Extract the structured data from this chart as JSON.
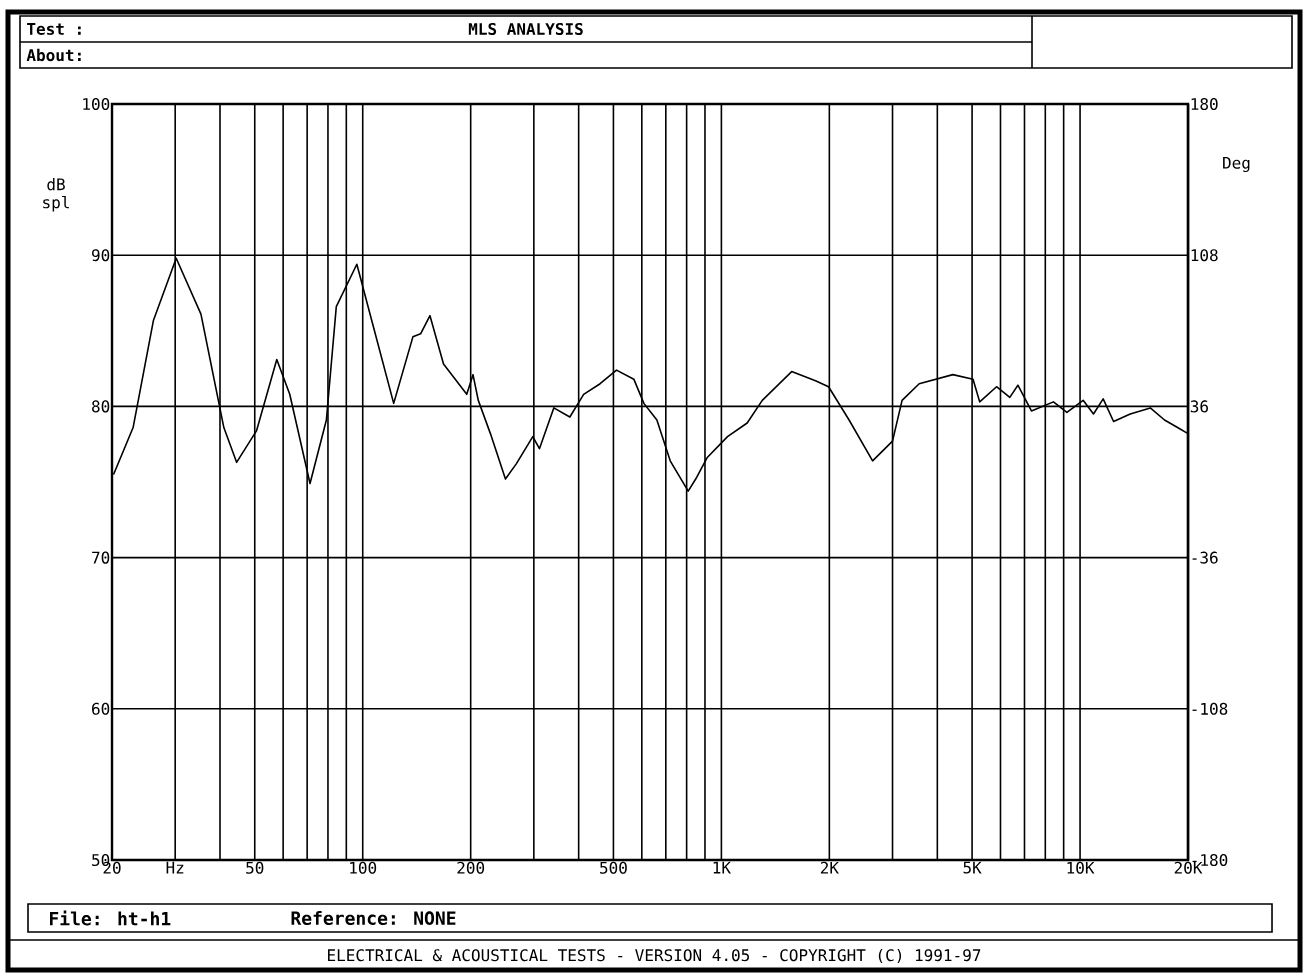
{
  "chart_data": {
    "type": "line",
    "xlabel": null,
    "ylabel": "dB spl",
    "y2label": "Deg",
    "annotations": [
      "Test :",
      "MLS ANALYSIS",
      "About:",
      "File: ht-h1",
      "Reference: NONE",
      "ELECTRICAL & ACOUSTICAL TESTS - VERSION 4.05 - COPYRIGHT (C) 1991-97"
    ],
    "log": "x",
    "grid": true,
    "marker": "none",
    "line_style": "solid",
    "xlim": [
      20,
      20000
    ],
    "ylim": [
      50,
      100
    ],
    "y2lim": [
      -180,
      180
    ],
    "xticks": [
      20,
      {
        "value": 30,
        "label": "Hz"
      },
      {
        "value": 40,
        "label": null
      },
      50,
      {
        "value": 60,
        "label": null
      },
      {
        "value": 70,
        "label": null
      },
      {
        "value": 80,
        "label": null
      },
      {
        "value": 90,
        "label": null
      },
      100,
      200,
      {
        "value": 300,
        "label": null
      },
      {
        "value": 400,
        "label": null
      },
      500,
      {
        "value": 600,
        "label": null
      },
      {
        "value": 700,
        "label": null
      },
      {
        "value": 800,
        "label": null
      },
      {
        "value": 900,
        "label": null
      },
      {
        "value": 1000,
        "label": "1K"
      },
      {
        "value": 2000,
        "label": "2K"
      },
      {
        "value": 3000,
        "label": null
      },
      {
        "value": 4000,
        "label": null
      },
      {
        "value": 5000,
        "label": "5K"
      },
      {
        "value": 6000,
        "label": null
      },
      {
        "value": 7000,
        "label": null
      },
      {
        "value": 8000,
        "label": null
      },
      {
        "value": 9000,
        "label": null
      },
      {
        "value": 10000,
        "label": "10K"
      },
      {
        "value": 20000,
        "label": "20K"
      }
    ],
    "yticks": [
      50,
      60,
      70,
      80,
      90,
      100
    ],
    "y2ticks": [
      -180,
      -108,
      -36,
      36,
      108,
      180
    ],
    "series": [
      {
        "color": "#000000",
        "x": [
          20.2,
          22.9,
          26.1,
          30.2,
          35.4,
          41.0,
          44.5,
          50.6,
          57.6,
          62.6,
          71.3,
          79.2,
          84.4,
          96.3,
          107,
          122,
          138,
          145,
          154,
          168,
          195,
          203,
          210,
          227,
          250,
          268,
          298,
          311,
          341,
          378,
          413,
          459,
          510,
          570,
          608,
          661,
          720,
          808,
          853,
          912,
          1040,
          1180,
          1300,
          1570,
          1830,
          1990,
          2270,
          2640,
          3000,
          3190,
          3560,
          4420,
          5030,
          5250,
          5850,
          6370,
          6710,
          7320,
          8430,
          9190,
          10200,
          10900,
          11600,
          12400,
          13800,
          15700,
          17200,
          18700,
          20000
        ],
        "values": [
          75.5,
          78.6,
          85.7,
          89.8,
          86.1,
          78.6,
          76.3,
          78.4,
          83.1,
          80.8,
          74.9,
          79.1,
          86.6,
          89.4,
          85.3,
          80.2,
          84.6,
          84.8,
          86.0,
          82.8,
          80.8,
          82.1,
          80.4,
          78.2,
          75.2,
          76.2,
          78.0,
          77.2,
          79.9,
          79.3,
          80.8,
          81.5,
          82.4,
          81.8,
          80.2,
          79.1,
          76.4,
          74.4,
          75.3,
          76.6,
          78.0,
          78.9,
          80.4,
          82.3,
          81.7,
          81.3,
          79.1,
          76.4,
          77.7,
          80.4,
          81.5,
          82.1,
          81.8,
          80.3,
          81.3,
          80.6,
          81.4,
          79.7,
          80.3,
          79.6,
          80.4,
          79.5,
          80.5,
          79.0,
          79.5,
          79.9,
          79.1,
          78.6,
          78.2
        ]
      }
    ]
  }
}
